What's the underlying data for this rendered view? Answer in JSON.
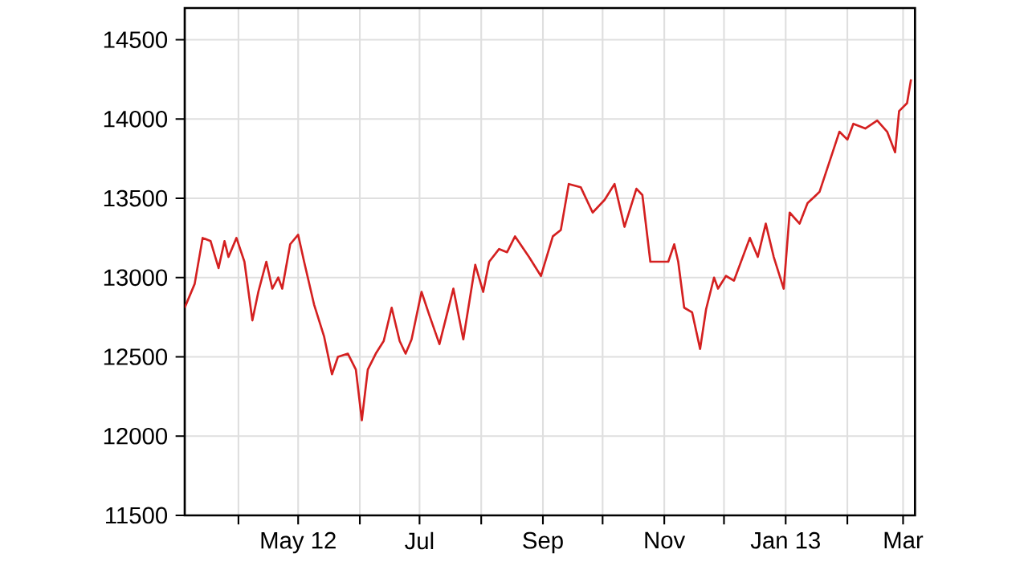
{
  "chart_data": {
    "type": "line",
    "grid": true,
    "marker": "none",
    "line_style": "solid",
    "xlim": [
      "2012-03-05",
      "2013-03-07"
    ],
    "ylim": [
      11500,
      14700
    ],
    "yticks": [
      11500,
      12000,
      12500,
      13000,
      13500,
      14000,
      14500
    ],
    "xticks": [
      {
        "value": "2012-04-01",
        "label": null
      },
      {
        "value": "2012-05-01",
        "label": "May 12"
      },
      {
        "value": "2012-06-01",
        "label": null
      },
      {
        "value": "2012-07-01",
        "label": "Jul"
      },
      {
        "value": "2012-08-01",
        "label": null
      },
      {
        "value": "2012-09-01",
        "label": "Sep"
      },
      {
        "value": "2012-10-01",
        "label": null
      },
      {
        "value": "2012-11-01",
        "label": "Nov"
      },
      {
        "value": "2012-12-01",
        "label": null
      },
      {
        "value": "2013-01-01",
        "label": "Jan 13"
      },
      {
        "value": "2013-02-01",
        "label": null
      },
      {
        "value": "2013-03-01",
        "label": "Mar"
      }
    ],
    "series": [
      {
        "color": "#d42020",
        "x": [
          "2012-03-05",
          "2012-03-10",
          "2012-03-14",
          "2012-03-18",
          "2012-03-22",
          "2012-03-25",
          "2012-03-27",
          "2012-03-31",
          "2012-04-04",
          "2012-04-08",
          "2012-04-11",
          "2012-04-15",
          "2012-04-18",
          "2012-04-21",
          "2012-04-23",
          "2012-04-27",
          "2012-05-01",
          "2012-05-04",
          "2012-05-09",
          "2012-05-14",
          "2012-05-18",
          "2012-05-21",
          "2012-05-26",
          "2012-05-30",
          "2012-06-02",
          "2012-06-05",
          "2012-06-09",
          "2012-06-13",
          "2012-06-17",
          "2012-06-21",
          "2012-06-24",
          "2012-06-27",
          "2012-07-02",
          "2012-07-06",
          "2012-07-11",
          "2012-07-18",
          "2012-07-23",
          "2012-07-29",
          "2012-08-02",
          "2012-08-05",
          "2012-08-10",
          "2012-08-14",
          "2012-08-18",
          "2012-08-25",
          "2012-08-31",
          "2012-09-06",
          "2012-09-10",
          "2012-09-14",
          "2012-09-20",
          "2012-09-26",
          "2012-10-02",
          "2012-10-07",
          "2012-10-12",
          "2012-10-18",
          "2012-10-21",
          "2012-10-25",
          "2012-11-03",
          "2012-11-06",
          "2012-11-08",
          "2012-11-11",
          "2012-11-15",
          "2012-11-19",
          "2012-11-22",
          "2012-11-26",
          "2012-11-28",
          "2012-12-02",
          "2012-12-06",
          "2012-12-14",
          "2012-12-18",
          "2012-12-22",
          "2012-12-26",
          "2012-12-31",
          "2013-01-03",
          "2013-01-08",
          "2013-01-12",
          "2013-01-18",
          "2013-01-28",
          "2013-02-01",
          "2013-02-04",
          "2013-02-10",
          "2013-02-16",
          "2013-02-21",
          "2013-02-25",
          "2013-02-27",
          "2013-03-03",
          "2013-03-05"
        ],
        "values": [
          12810,
          12960,
          13250,
          13230,
          13060,
          13230,
          13130,
          13250,
          13100,
          12730,
          12910,
          13100,
          12930,
          13000,
          12930,
          13210,
          13270,
          13100,
          12830,
          12630,
          12390,
          12500,
          12520,
          12420,
          12100,
          12420,
          12520,
          12600,
          12810,
          12600,
          12520,
          12610,
          12910,
          12760,
          12580,
          12930,
          12610,
          13080,
          12910,
          13100,
          13180,
          13160,
          13260,
          13130,
          13010,
          13260,
          13300,
          13590,
          13570,
          13410,
          13490,
          13590,
          13320,
          13560,
          13520,
          13100,
          13100,
          13210,
          13100,
          12810,
          12780,
          12550,
          12800,
          13000,
          12930,
          13010,
          12980,
          13250,
          13130,
          13340,
          13130,
          12930,
          13410,
          13340,
          13470,
          13540,
          13920,
          13870,
          13970,
          13940,
          13990,
          13920,
          13790,
          14050,
          14100,
          14250
        ]
      }
    ]
  }
}
